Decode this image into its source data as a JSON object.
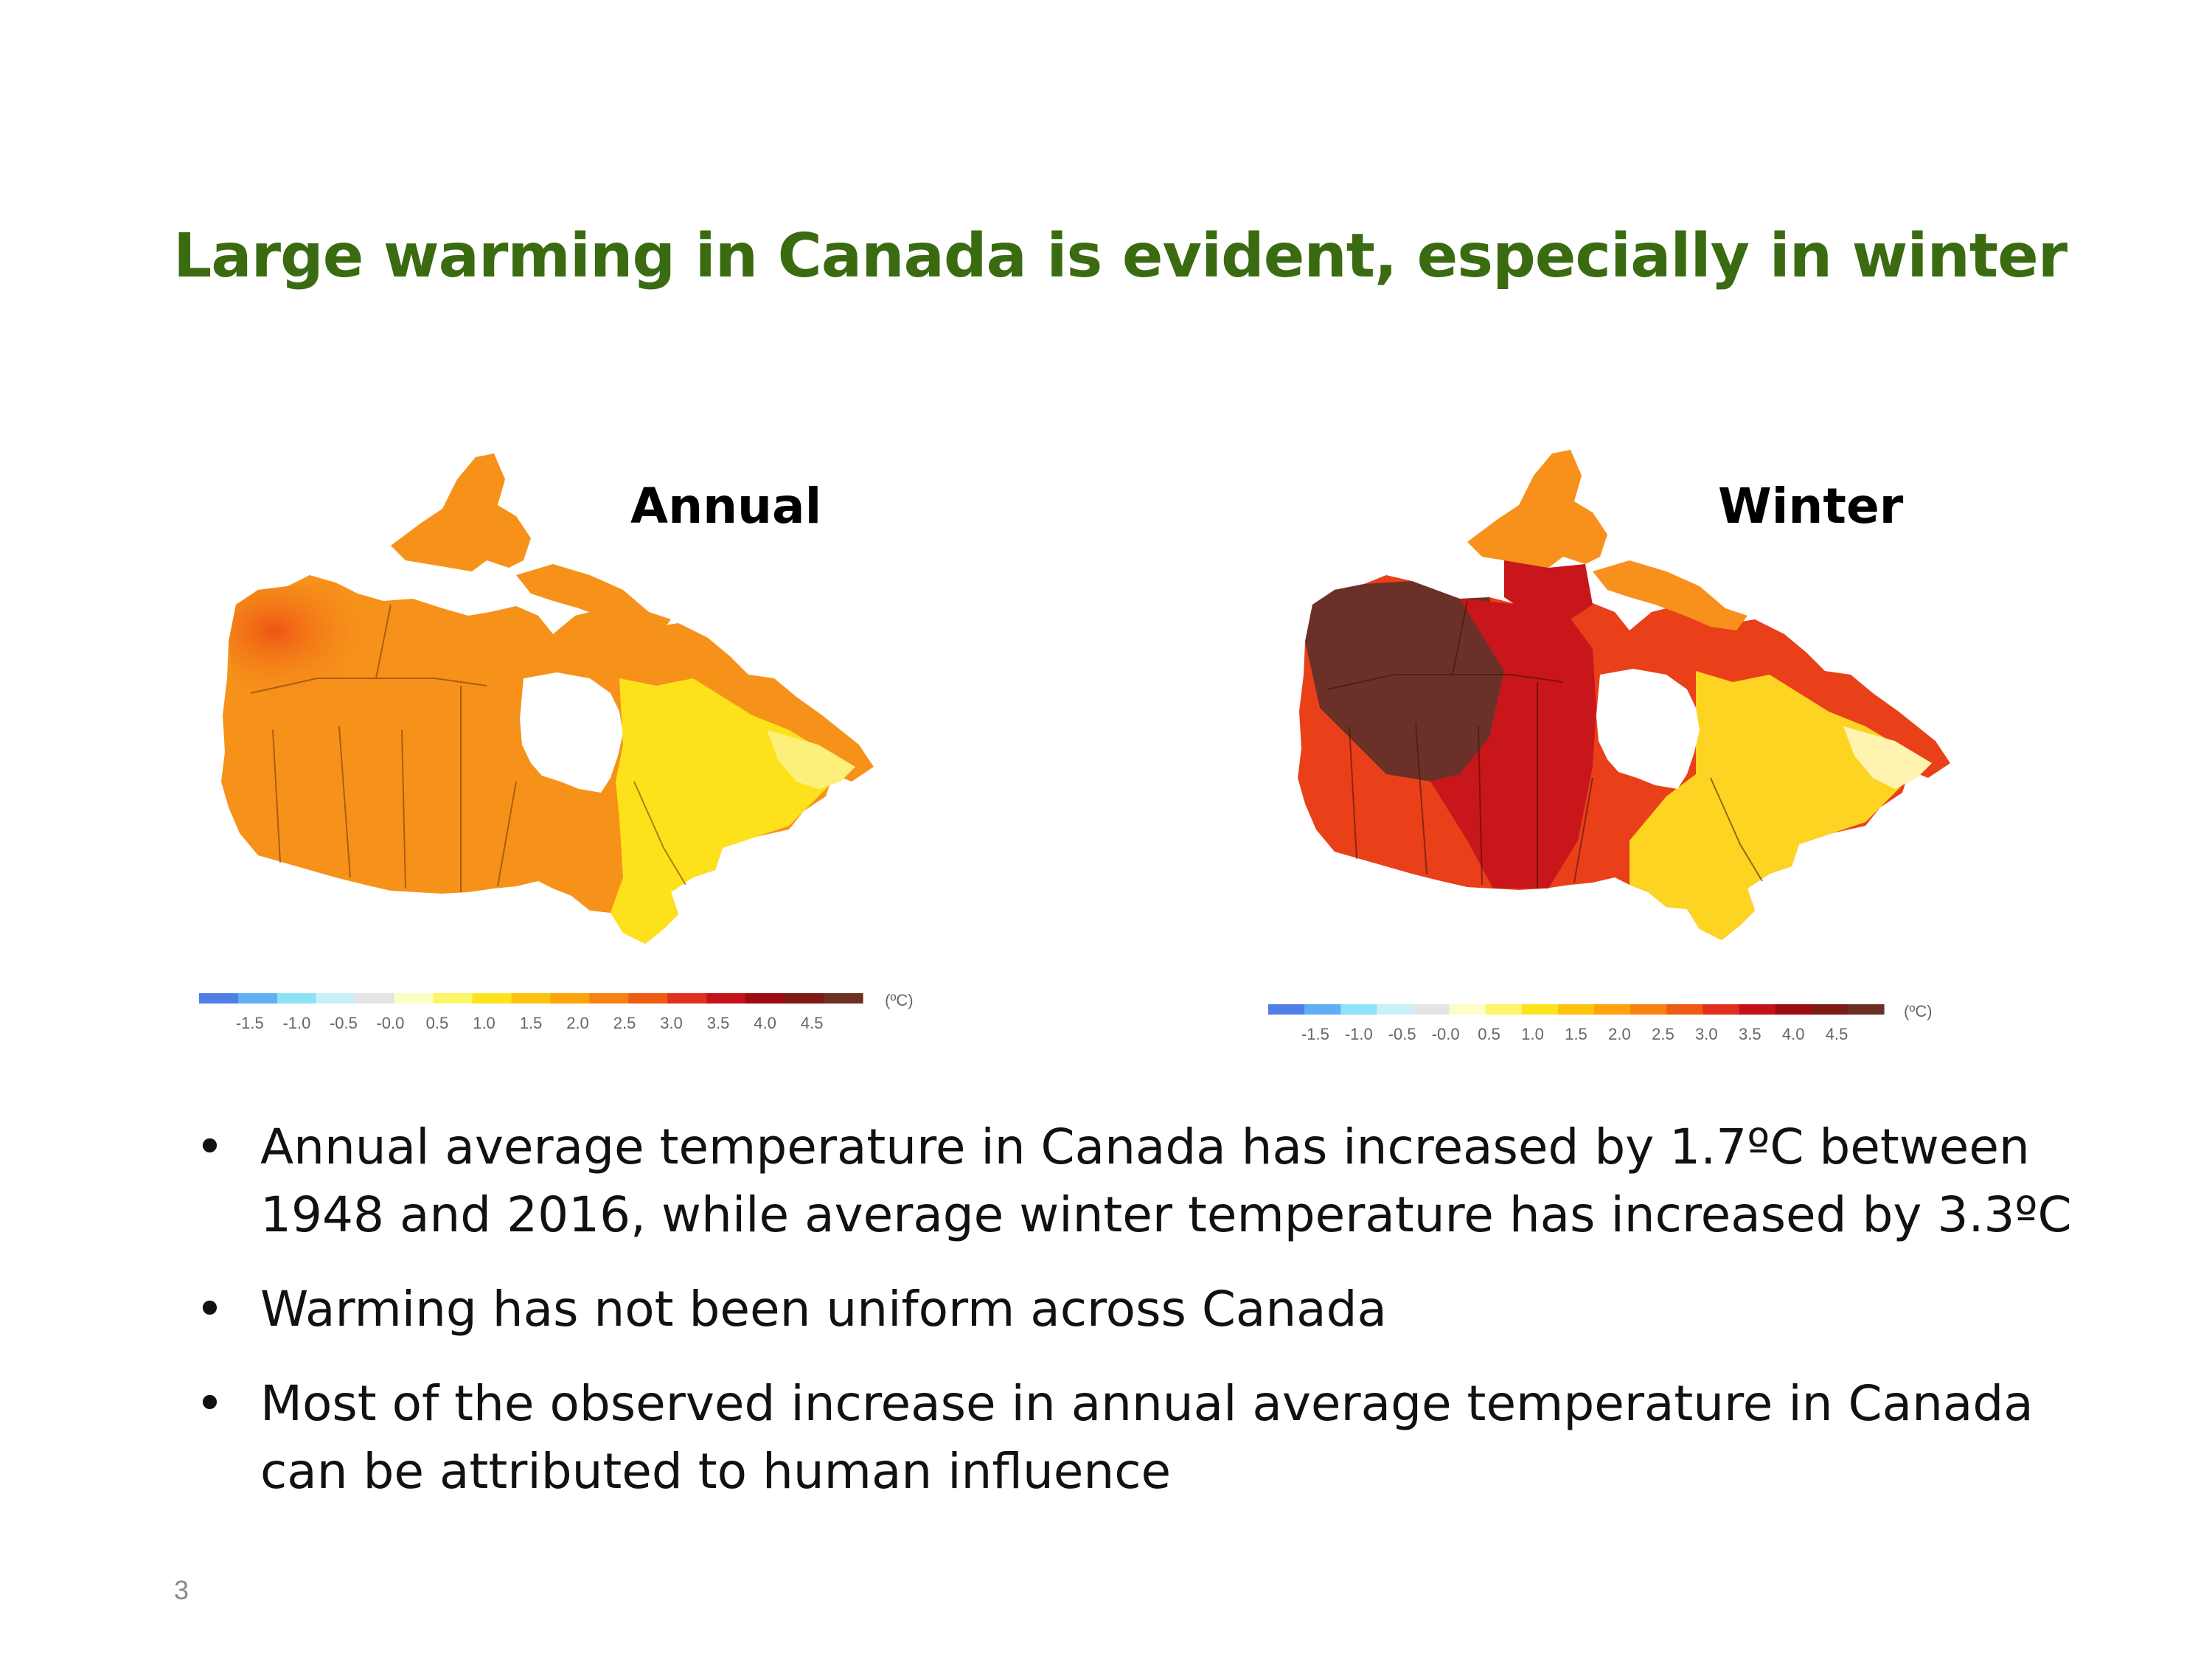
{
  "slide": {
    "title": "Large warming in Canada is evident, especially in winter",
    "page_number": "3"
  },
  "maps": {
    "annual": {
      "label": "Annual",
      "scale_unit": "(ºC)",
      "scale_ticks": [
        "-1.5",
        "-1.0",
        "-0.5",
        "-0.0",
        "0.5",
        "1.0",
        "1.5",
        "2.0",
        "2.5",
        "3.0",
        "3.5",
        "4.0",
        "4.5"
      ]
    },
    "winter": {
      "label": "Winter",
      "scale_unit": "(ºC)",
      "scale_ticks": [
        "-1.5",
        "-1.0",
        "-0.5",
        "-0.0",
        "0.5",
        "1.0",
        "1.5",
        "2.0",
        "2.5",
        "3.0",
        "3.5",
        "4.0",
        "4.5"
      ]
    }
  },
  "colorscale": [
    "#4f7ee6",
    "#5fb0f2",
    "#8de2f7",
    "#c9f0f5",
    "#e4e4e4",
    "#fdfdc8",
    "#fdf56a",
    "#fde31c",
    "#fdc40d",
    "#fda30c",
    "#f98012",
    "#ef5a14",
    "#e0301d",
    "#c4121a",
    "#9b0c10",
    "#7d1a14",
    "#6b3021"
  ],
  "map_colors": {
    "annual": {
      "west": "#f26c13",
      "north": "#f6921a",
      "central": "#fdb113",
      "east": "#fde21b",
      "coast": "#fdf07a"
    },
    "winter": {
      "northwest": "#6b3129",
      "central": "#c9161b",
      "south": "#e9401a",
      "north": "#f8901c",
      "east": "#fdd422",
      "coast": "#fef4b0"
    }
  },
  "bullets": [
    "Annual average temperature in Canada has increased by 1.7ºC between 1948 and 2016, while average winter temperature has increased by 3.3ºC",
    "Warming has not been uniform across Canada",
    "Most of the observed increase in annual average temperature in Canada can be attributed to human influence"
  ],
  "bullet_symbol": "•"
}
